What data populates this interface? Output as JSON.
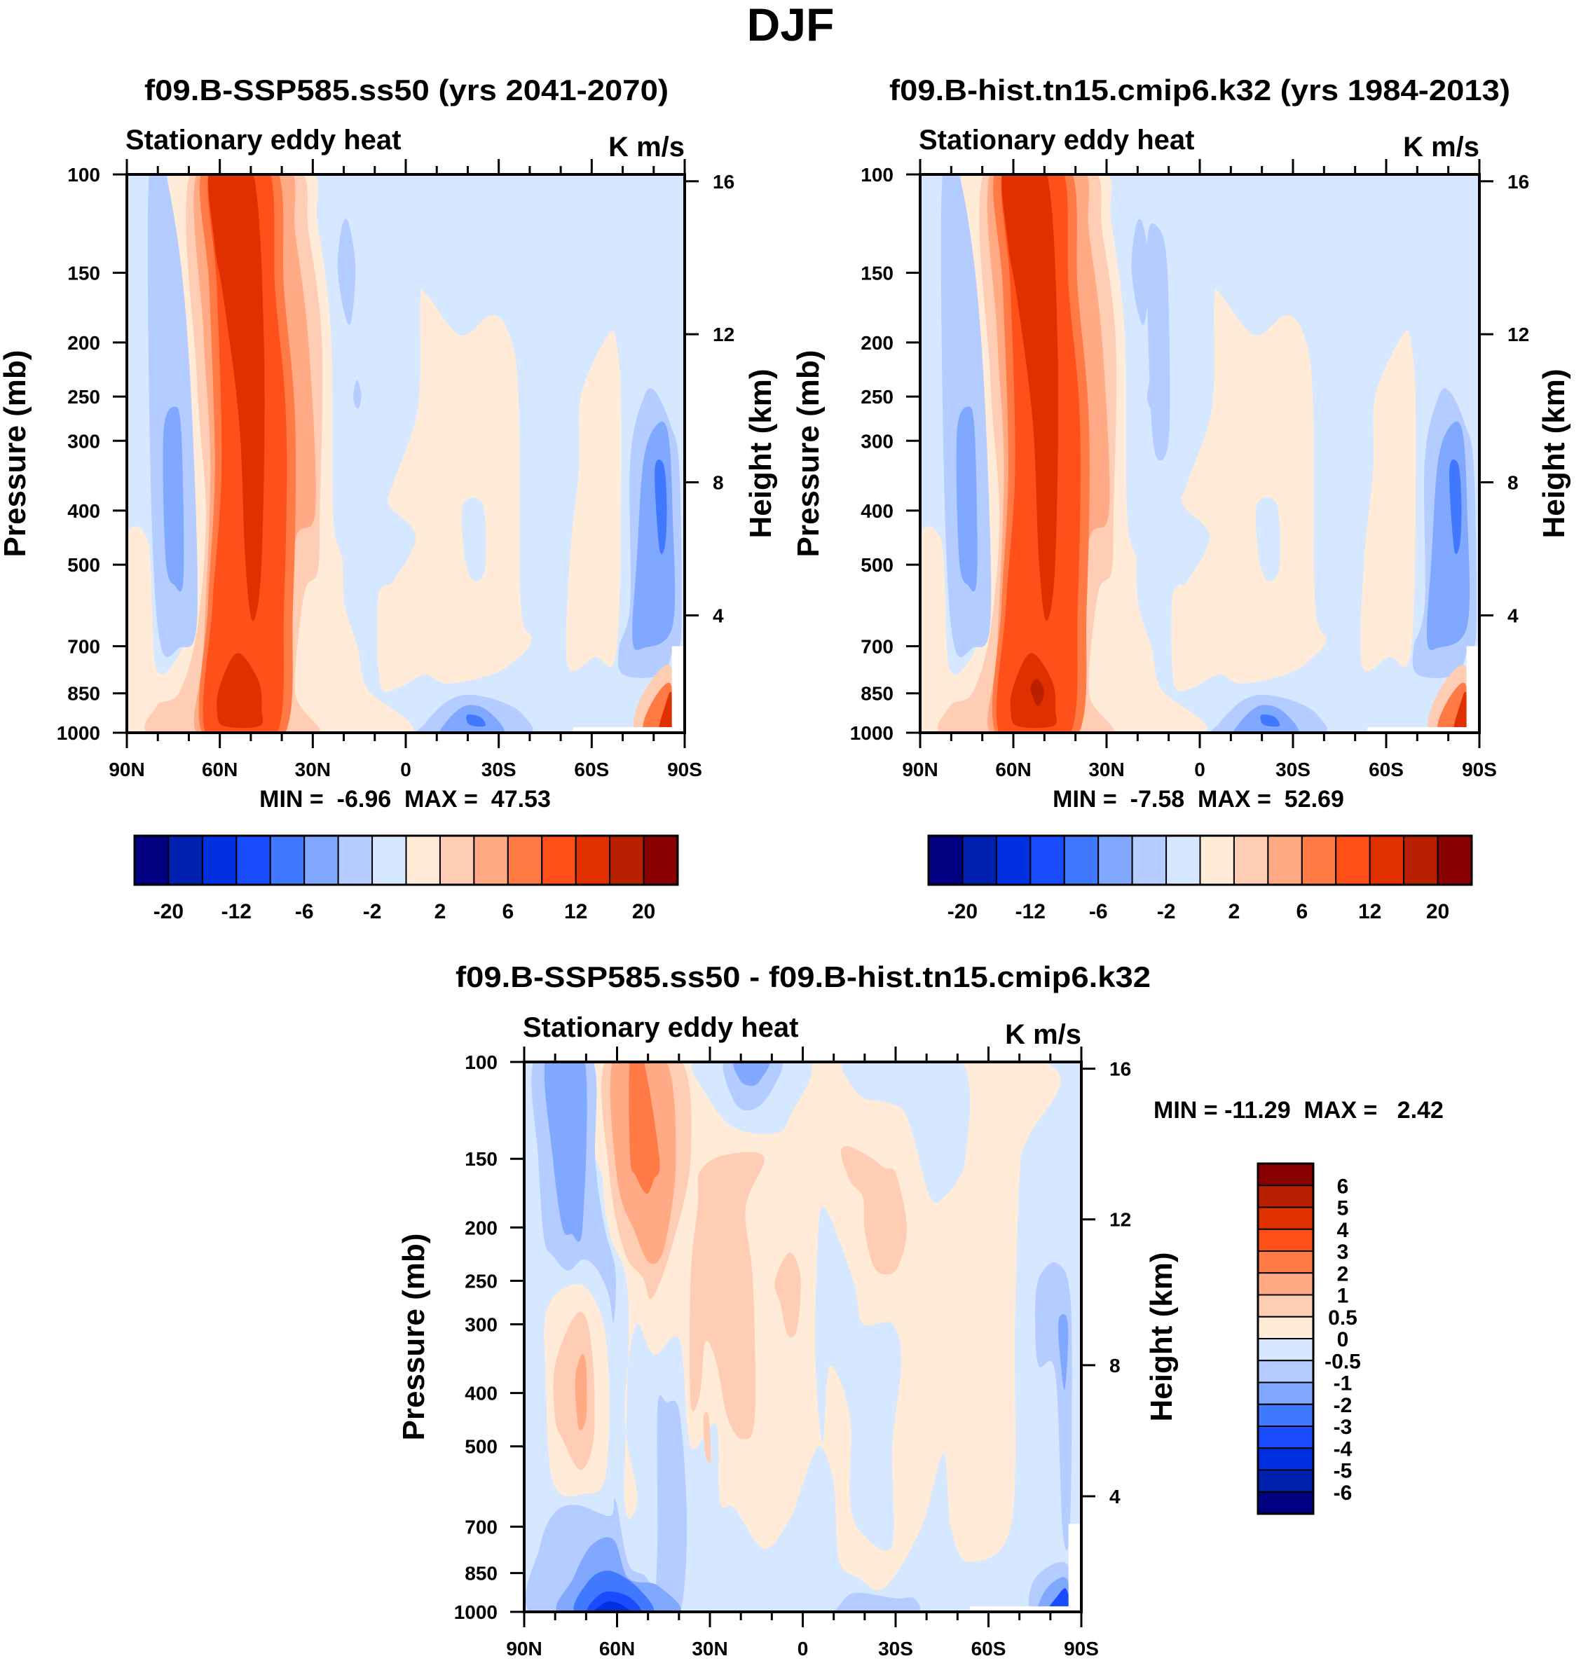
{
  "figure_title": "DJF",
  "chart_data": [
    {
      "type": "contour",
      "title": "f09.B-SSP585.ss50 (yrs 2041-2070)",
      "subtitle": "Stationary eddy heat",
      "units": "K m/s",
      "stats": "MIN =  -6.96  MAX =  47.53",
      "min": -6.96,
      "max": 47.53,
      "ylabel": "Pressure (mb)",
      "ylabel_right": "Height (km)",
      "yticks": [
        "100",
        "150",
        "200",
        "250",
        "300",
        "400",
        "500",
        "700",
        "850",
        "1000"
      ],
      "yticks_right": [
        "4",
        "8",
        "12",
        "16"
      ],
      "xticks": [
        "90N",
        "60N",
        "30N",
        "0",
        "30S",
        "60S",
        "90S"
      ],
      "xlim": [
        90,
        -90
      ],
      "ylim": [
        1000,
        100
      ],
      "colorbar": {
        "orientation": "horizontal",
        "labels": [
          "-20",
          "-12",
          "-6",
          "-2",
          "2",
          "6",
          "12",
          "20"
        ],
        "colors": [
          "#000080",
          "#0020b0",
          "#0030e0",
          "#1a4cff",
          "#4078ff",
          "#80a8ff",
          "#b4ccff",
          "#d6e8ff",
          "#ffebd8",
          "#ffcdb4",
          "#ffaa84",
          "#ff7a44",
          "#ff501a",
          "#e03000",
          "#b82000",
          "#880000"
        ]
      }
    },
    {
      "type": "contour",
      "title": "f09.B-hist.tn15.cmip6.k32 (yrs 1984-2013)",
      "subtitle": "Stationary eddy heat",
      "units": "K m/s",
      "stats": "MIN =  -7.58  MAX =  52.69",
      "min": -7.58,
      "max": 52.69,
      "ylabel": "Pressure (mb)",
      "ylabel_right": "Height (km)",
      "yticks": [
        "100",
        "150",
        "200",
        "250",
        "300",
        "400",
        "500",
        "700",
        "850",
        "1000"
      ],
      "yticks_right": [
        "4",
        "8",
        "12",
        "16"
      ],
      "xticks": [
        "90N",
        "60N",
        "30N",
        "0",
        "30S",
        "60S",
        "90S"
      ],
      "xlim": [
        90,
        -90
      ],
      "ylim": [
        1000,
        100
      ],
      "colorbar": {
        "orientation": "horizontal",
        "labels": [
          "-20",
          "-12",
          "-6",
          "-2",
          "2",
          "6",
          "12",
          "20"
        ],
        "colors": [
          "#000080",
          "#0020b0",
          "#0030e0",
          "#1a4cff",
          "#4078ff",
          "#80a8ff",
          "#b4ccff",
          "#d6e8ff",
          "#ffebd8",
          "#ffcdb4",
          "#ffaa84",
          "#ff7a44",
          "#ff501a",
          "#e03000",
          "#b82000",
          "#880000"
        ]
      }
    },
    {
      "type": "contour",
      "title": "f09.B-SSP585.ss50 - f09.B-hist.tn15.cmip6.k32",
      "subtitle": "Stationary eddy heat",
      "units": "K m/s",
      "stats": "MIN = -11.29  MAX =   2.42",
      "min": -11.29,
      "max": 2.42,
      "ylabel": "Pressure (mb)",
      "ylabel_right": "Height (km)",
      "yticks": [
        "100",
        "150",
        "200",
        "250",
        "300",
        "400",
        "500",
        "700",
        "850",
        "1000"
      ],
      "yticks_right": [
        "4",
        "8",
        "12",
        "16"
      ],
      "xticks": [
        "90N",
        "60N",
        "30N",
        "0",
        "30S",
        "60S",
        "90S"
      ],
      "xlim": [
        90,
        -90
      ],
      "ylim": [
        1000,
        100
      ],
      "colorbar": {
        "orientation": "vertical",
        "labels": [
          "6",
          "5",
          "4",
          "3",
          "2",
          "1",
          "0.5",
          "0",
          "-0.5",
          "-1",
          "-2",
          "-3",
          "-4",
          "-5",
          "-6"
        ],
        "colors": [
          "#880000",
          "#b82000",
          "#e03000",
          "#ff501a",
          "#ff7a44",
          "#ffaa84",
          "#ffcdb4",
          "#ffebd8",
          "#d6e8ff",
          "#b4ccff",
          "#80a8ff",
          "#4078ff",
          "#1a4cff",
          "#0030e0",
          "#0020b0",
          "#000080"
        ]
      }
    }
  ]
}
